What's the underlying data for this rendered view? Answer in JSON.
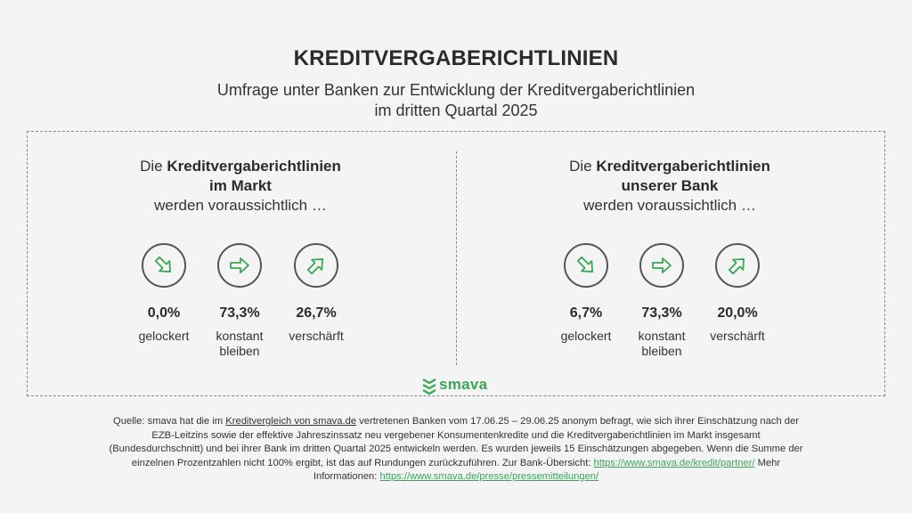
{
  "title": "KREDITVERGABERICHTLINIEN",
  "subtitle_line1": "Umfrage unter Banken zur Entwicklung der Kreditvergaberichtlinien",
  "subtitle_line2": "im dritten Quartal 2025",
  "colors": {
    "accent": "#3aa757",
    "text": "#333333",
    "background": "#f4f4f4"
  },
  "left": {
    "prefix": "Die",
    "bold1": "Kreditvergaberichtlinien",
    "bold2": "im Markt",
    "suffix": "werden voraussichtlich …",
    "items": [
      {
        "icon": "arrow-down-right-icon",
        "value": "0,0%",
        "label1": "gelockert",
        "label2": ""
      },
      {
        "icon": "arrow-right-icon",
        "value": "73,3%",
        "label1": "konstant",
        "label2": "bleiben"
      },
      {
        "icon": "arrow-up-right-icon",
        "value": "26,7%",
        "label1": "verschärft",
        "label2": ""
      }
    ]
  },
  "right": {
    "prefix": "Die",
    "bold1": "Kreditvergaberichtlinien",
    "bold2": "unserer Bank",
    "suffix": "werden voraussichtlich …",
    "items": [
      {
        "icon": "arrow-down-right-icon",
        "value": "6,7%",
        "label1": "gelockert",
        "label2": ""
      },
      {
        "icon": "arrow-right-icon",
        "value": "73,3%",
        "label1": "konstant",
        "label2": "bleiben"
      },
      {
        "icon": "arrow-up-right-icon",
        "value": "20,0%",
        "label1": "verschärft",
        "label2": ""
      }
    ]
  },
  "logo_text": "smava",
  "footer": {
    "p1": "Quelle: smava hat die im ",
    "link1": "Kreditvergleich von smava.de",
    "p2": " vertretenen Banken vom 17.06.25 – 29.06.25 anonym befragt, wie sich ihrer Einschätzung nach der EZB-Leitzins sowie der effektive Jahreszinssatz neu vergebener Konsumentenkredite und die Kreditvergaberichtlinien im Markt insgesamt (Bundesdurchschnitt) und bei ihrer Bank im dritten Quartal 2025 entwickeln werden. Es wurden jeweils 15 Einschätzungen abgegeben. Wenn die Summe der einzelnen Prozentzahlen nicht 100% ergibt, ist das auf Rundungen zurückzuführen. Zur Bank-Übersicht: ",
    "link2": "https://www.smava.de/kredit/partner/",
    "p3": " Mehr Informationen: ",
    "link3": "https://www.smava.de/presse/pressemitteilungen/"
  }
}
